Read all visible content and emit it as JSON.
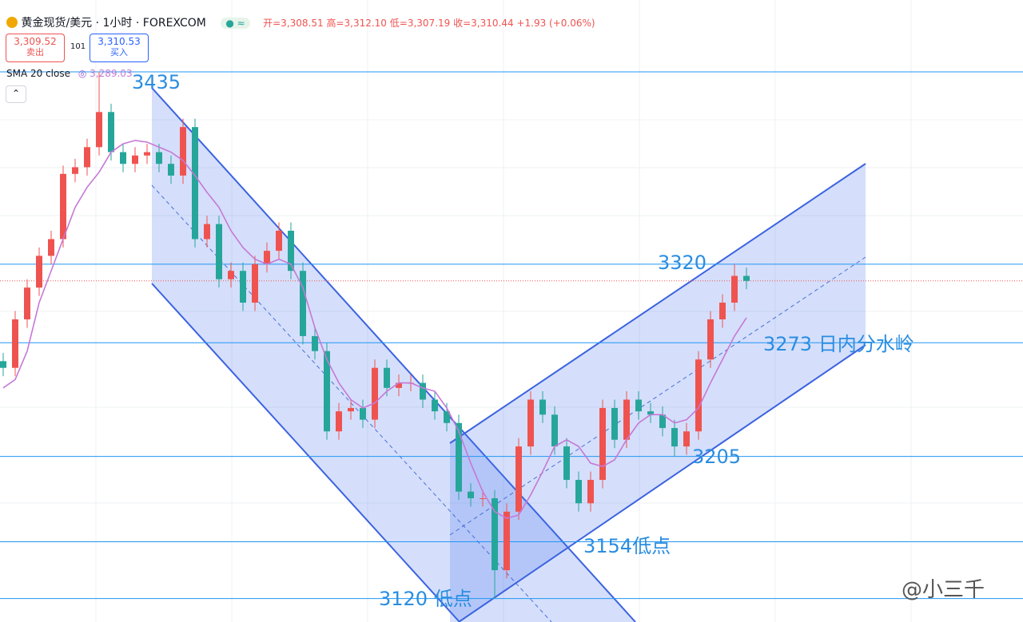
{
  "chart_data": {
    "type": "candlestick",
    "header": {
      "symbol": "黄金现货/美元 · 1小时 · FOREXCOM",
      "open": "开=3,308.51",
      "high": "高=3,312.10",
      "low": "低=3,307.19",
      "close": "收=3,310.44",
      "change": "+1.93 (+0.06%)",
      "sell_price": "3,309.52",
      "sell_label": "卖出",
      "spread": "101",
      "buy_price": "3,310.53",
      "buy_label": "买入",
      "indicator": "SMA 20 close",
      "indicator_value": "3,289.03"
    },
    "watermark": "@小三千",
    "ylim": [
      3106,
      3478
    ],
    "up_color": "#ef5350",
    "down_color": "#26a69a",
    "sma_color": "#c678d6",
    "level_color": "#2196f3",
    "open": [
      3262,
      3258,
      3287,
      3306,
      3325,
      3335,
      3374,
      3378,
      3390,
      3411,
      3387,
      3380,
      3385,
      3387,
      3380,
      3373,
      3402,
      3335,
      3344,
      3311,
      3316,
      3297,
      3320,
      3328,
      3340,
      3316,
      3277,
      3268,
      3220,
      3232,
      3234,
      3227,
      3258,
      3246,
      3249,
      3249,
      3239,
      3232,
      3225,
      3184,
      3180,
      3180,
      3137,
      3172,
      3211,
      3239,
      3230,
      3211,
      3191,
      3177,
      3191,
      3234,
      3215,
      3239,
      3232,
      3230,
      3222,
      3211,
      3220,
      3263,
      3287,
      3297,
      3313
    ],
    "high": [
      3267,
      3292,
      3311,
      3330,
      3340,
      3379,
      3383,
      3395,
      3435,
      3416,
      3392,
      3390,
      3392,
      3392,
      3385,
      3407,
      3407,
      3349,
      3349,
      3321,
      3321,
      3325,
      3333,
      3345,
      3345,
      3321,
      3282,
      3273,
      3237,
      3239,
      3239,
      3263,
      3263,
      3254,
      3254,
      3254,
      3244,
      3237,
      3230,
      3189,
      3185,
      3185,
      3177,
      3216,
      3244,
      3244,
      3235,
      3216,
      3196,
      3196,
      3239,
      3239,
      3244,
      3244,
      3237,
      3235,
      3227,
      3225,
      3268,
      3292,
      3302,
      3320,
      3318
    ],
    "low": [
      3253,
      3253,
      3282,
      3301,
      3320,
      3330,
      3369,
      3373,
      3385,
      3382,
      3375,
      3375,
      3380,
      3375,
      3368,
      3368,
      3330,
      3330,
      3306,
      3306,
      3292,
      3292,
      3315,
      3323,
      3311,
      3272,
      3263,
      3215,
      3215,
      3227,
      3222,
      3222,
      3241,
      3241,
      3244,
      3234,
      3227,
      3220,
      3179,
      3175,
      3175,
      3120,
      3132,
      3167,
      3206,
      3225,
      3206,
      3186,
      3172,
      3172,
      3186,
      3210,
      3210,
      3227,
      3225,
      3217,
      3205,
      3206,
      3215,
      3258,
      3282,
      3292,
      3305
    ],
    "close": [
      3258,
      3287,
      3306,
      3325,
      3335,
      3374,
      3378,
      3390,
      3411,
      3387,
      3380,
      3385,
      3387,
      3380,
      3373,
      3402,
      3335,
      3344,
      3311,
      3316,
      3297,
      3320,
      3328,
      3340,
      3316,
      3277,
      3268,
      3220,
      3232,
      3234,
      3227,
      3258,
      3246,
      3249,
      3249,
      3239,
      3232,
      3225,
      3184,
      3180,
      3180,
      3137,
      3172,
      3211,
      3239,
      3230,
      3211,
      3191,
      3177,
      3191,
      3234,
      3215,
      3239,
      3232,
      3230,
      3222,
      3211,
      3220,
      3263,
      3287,
      3297,
      3313,
      3310
    ],
    "sma": [
      3246,
      3251,
      3268,
      3297,
      3316,
      3335,
      3354,
      3366,
      3375,
      3387,
      3392,
      3394,
      3393,
      3390,
      3387,
      3382,
      3373,
      3363,
      3354,
      3340,
      3330,
      3323,
      3320,
      3323,
      3320,
      3306,
      3282,
      3263,
      3249,
      3239,
      3234,
      3237,
      3244,
      3249,
      3249,
      3246,
      3244,
      3234,
      3220,
      3201,
      3184,
      3172,
      3168,
      3170,
      3182,
      3196,
      3211,
      3215,
      3211,
      3201,
      3199,
      3203,
      3215,
      3225,
      3230,
      3230,
      3225,
      3227,
      3234,
      3249,
      3263,
      3277,
      3288
    ],
    "last_price": 3310,
    "levels": [
      {
        "value": 3435,
        "label": "3435"
      },
      {
        "value": 3320,
        "label": "3320"
      },
      {
        "value": 3273,
        "label": "3273 日内分水岭"
      },
      {
        "value": 3205,
        "label": "3205"
      },
      {
        "value": 3154,
        "label": "3154低点"
      },
      {
        "value": 3120,
        "label": "3120 低点"
      }
    ]
  }
}
